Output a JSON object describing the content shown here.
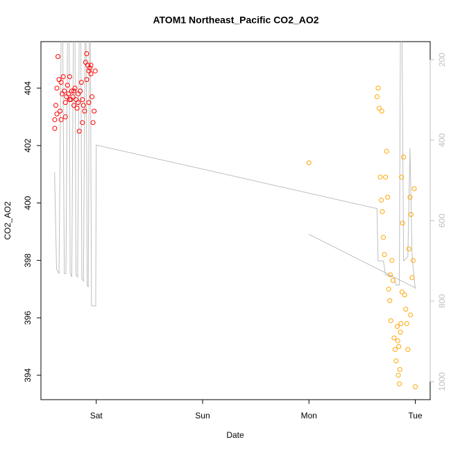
{
  "chart_data": {
    "type": "scatter",
    "title": "ATOM1 Northeast_Pacific CO2_AO2",
    "x_label": "Date",
    "y_label": "CO2_AO2",
    "xlim": [
      -0.52,
      3.14
    ],
    "ylim": [
      393.15,
      405.62
    ],
    "y2lim": [
      1045,
      155
    ],
    "xticks": [
      {
        "value": 0,
        "label": "Sat"
      },
      {
        "value": 1,
        "label": "Sun"
      },
      {
        "value": 2,
        "label": "Mon"
      },
      {
        "value": 3,
        "label": "Tue"
      }
    ],
    "yticks": [
      394,
      396,
      398,
      400,
      402,
      404
    ],
    "y2ticks": [
      200,
      400,
      600,
      800,
      1000
    ],
    "y2_color": "#bebebe",
    "series": [
      {
        "type": "scatter",
        "color": "#ff0000",
        "x": [
          -0.39,
          -0.39,
          -0.38,
          -0.37,
          -0.36,
          -0.35,
          -0.34,
          -0.33,
          -0.32,
          -0.31,
          -0.3,
          -0.29,
          -0.28,
          -0.27,
          -0.26,
          -0.25,
          -0.24,
          -0.23,
          -0.22,
          -0.21,
          -0.2,
          -0.19,
          -0.18,
          -0.17,
          -0.16,
          -0.15,
          -0.14,
          -0.13,
          -0.12,
          -0.11,
          -0.1,
          -0.09,
          -0.08,
          -0.07,
          -0.06,
          -0.05,
          -0.04,
          -0.03,
          -0.02,
          -0.01,
          -0.37,
          -0.33,
          -0.29,
          -0.25,
          -0.21,
          -0.17,
          -0.13,
          -0.09,
          -0.07,
          -0.05
        ],
        "values": [
          402.6,
          402.9,
          403.4,
          404.0,
          405.1,
          404.3,
          403.2,
          402.9,
          403.8,
          404.4,
          403.9,
          403.5,
          403.7,
          404.1,
          403.8,
          404.4,
          403.6,
          403.9,
          403.7,
          403.4,
          404.0,
          403.6,
          403.3,
          403.8,
          402.5,
          403.9,
          404.2,
          403.6,
          403.4,
          403.2,
          404.9,
          405.2,
          404.8,
          404.6,
          404.7,
          404.5,
          403.7,
          402.8,
          403.2,
          404.6,
          403.1,
          404.2,
          403.0,
          403.6,
          403.9,
          403.5,
          402.8,
          404.3,
          403.5,
          404.8
        ]
      },
      {
        "type": "scatter",
        "color": "#ffa500",
        "x": [
          2.0,
          2.64,
          2.65,
          2.66,
          2.67,
          2.68,
          2.69,
          2.7,
          2.71,
          2.72,
          2.73,
          2.74,
          2.75,
          2.76,
          2.77,
          2.78,
          2.79,
          2.8,
          2.81,
          2.82,
          2.83,
          2.84,
          2.85,
          2.86,
          2.87,
          2.88,
          2.89,
          2.9,
          2.91,
          2.92,
          2.93,
          2.94,
          2.95,
          2.96,
          2.97,
          2.98,
          2.99,
          3.0,
          2.845,
          2.855,
          2.865,
          2.835,
          2.875,
          2.765,
          2.685,
          2.955
        ],
        "values": [
          401.4,
          403.7,
          404.0,
          403.3,
          400.9,
          400.1,
          399.7,
          398.8,
          398.2,
          400.9,
          401.8,
          400.2,
          397.0,
          396.6,
          395.9,
          398.0,
          397.3,
          395.3,
          394.9,
          394.5,
          395.7,
          394.0,
          393.7,
          395.5,
          400.9,
          399.3,
          401.6,
          396.8,
          396.3,
          395.8,
          394.9,
          398.4,
          400.2,
          399.6,
          397.4,
          398.0,
          400.5,
          393.6,
          395.0,
          394.2,
          395.8,
          395.2,
          396.9,
          397.5,
          403.2,
          396.1
        ]
      },
      {
        "type": "line",
        "axis": "y2",
        "color": "#bebebe",
        "x": [
          -0.392,
          -0.373,
          -0.35,
          -0.33,
          -0.315,
          -0.3,
          -0.285,
          -0.27,
          -0.255,
          -0.245,
          -0.23,
          -0.215,
          -0.2,
          -0.19,
          -0.175,
          -0.16,
          -0.145,
          -0.135,
          -0.12,
          -0.105,
          -0.095,
          -0.085,
          -0.075,
          -0.065,
          -0.055,
          -0.045,
          -0.005,
          0.0,
          2.64,
          2.65,
          2.7,
          2.72,
          2.8,
          2.82,
          2.85,
          2.86,
          2.875,
          2.89,
          2.93,
          2.95,
          2.97,
          3.0,
          null,
          2.0,
          3.0
        ],
        "values": [
          480,
          720,
          732,
          140,
          140,
          732,
          732,
          140,
          140,
          730,
          740,
          140,
          140,
          735,
          740,
          140,
          140,
          745,
          750,
          140,
          140,
          760,
          765,
          140,
          140,
          812,
          812,
          412,
          570,
          700,
          700,
          735,
          740,
          760,
          760,
          140,
          140,
          700,
          690,
          420,
          690,
          770,
          null,
          634,
          767
        ]
      }
    ]
  }
}
